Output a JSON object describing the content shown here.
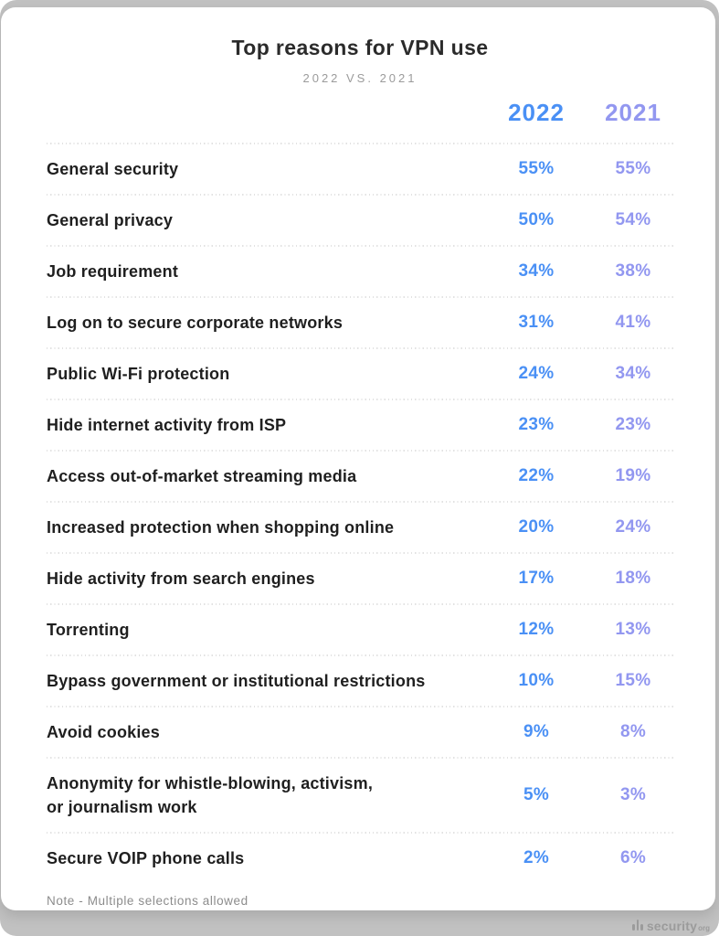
{
  "colors": {
    "accent_2022": "#4a90f5",
    "accent_2021": "#9297f0",
    "page_background": "#c1c1c1",
    "card_background": "#ffffff"
  },
  "header": {
    "title": "Top reasons for VPN use",
    "subtitle": "2022 VS. 2021"
  },
  "table": {
    "columns": [
      {
        "label": "2022"
      },
      {
        "label": "2021"
      }
    ],
    "rows": [
      {
        "label": "General security",
        "v2022": "55%",
        "v2021": "55%"
      },
      {
        "label": "General privacy",
        "v2022": "50%",
        "v2021": "54%"
      },
      {
        "label": "Job requirement",
        "v2022": "34%",
        "v2021": "38%"
      },
      {
        "label": "Log on to secure corporate networks",
        "v2022": "31%",
        "v2021": "41%"
      },
      {
        "label": "Public Wi-Fi protection",
        "v2022": "24%",
        "v2021": "34%"
      },
      {
        "label": "Hide internet activity from ISP",
        "v2022": "23%",
        "v2021": "23%"
      },
      {
        "label": "Access out-of-market streaming media",
        "v2022": "22%",
        "v2021": "19%"
      },
      {
        "label": "Increased protection when shopping online",
        "v2022": "20%",
        "v2021": "24%"
      },
      {
        "label": "Hide activity from search engines",
        "v2022": "17%",
        "v2021": "18%"
      },
      {
        "label": "Torrenting",
        "v2022": "12%",
        "v2021": "13%"
      },
      {
        "label": "Bypass government or institutional restrictions",
        "v2022": "10%",
        "v2021": "15%"
      },
      {
        "label": "Avoid cookies",
        "v2022": "9%",
        "v2021": "8%"
      },
      {
        "label": "Anonymity for whistle-blowing, activism,\nor journalism work",
        "v2022": "5%",
        "v2021": "3%"
      },
      {
        "label": "Secure VOIP phone calls",
        "v2022": "2%",
        "v2021": "6%"
      }
    ],
    "note": "Note - Multiple selections allowed"
  },
  "footer": {
    "brand": "security",
    "brand_suffix": "org"
  },
  "chart_data": {
    "type": "table",
    "title": "Top reasons for VPN use",
    "subtitle": "2022 VS. 2021",
    "categories": [
      "General security",
      "General privacy",
      "Job requirement",
      "Log on to secure corporate networks",
      "Public Wi-Fi protection",
      "Hide internet activity from ISP",
      "Access out-of-market streaming media",
      "Increased protection when shopping online",
      "Hide activity from search engines",
      "Torrenting",
      "Bypass government or institutional restrictions",
      "Avoid cookies",
      "Anonymity for whistle-blowing, activism, or journalism work",
      "Secure VOIP phone calls"
    ],
    "series": [
      {
        "name": "2022",
        "unit": "%",
        "color": "#4a90f5",
        "values": [
          55,
          50,
          34,
          31,
          24,
          23,
          22,
          20,
          17,
          12,
          10,
          9,
          5,
          2
        ]
      },
      {
        "name": "2021",
        "unit": "%",
        "color": "#9297f0",
        "values": [
          55,
          54,
          38,
          41,
          34,
          23,
          19,
          24,
          18,
          13,
          15,
          8,
          3,
          6
        ]
      }
    ],
    "note": "Note - Multiple selections allowed"
  }
}
